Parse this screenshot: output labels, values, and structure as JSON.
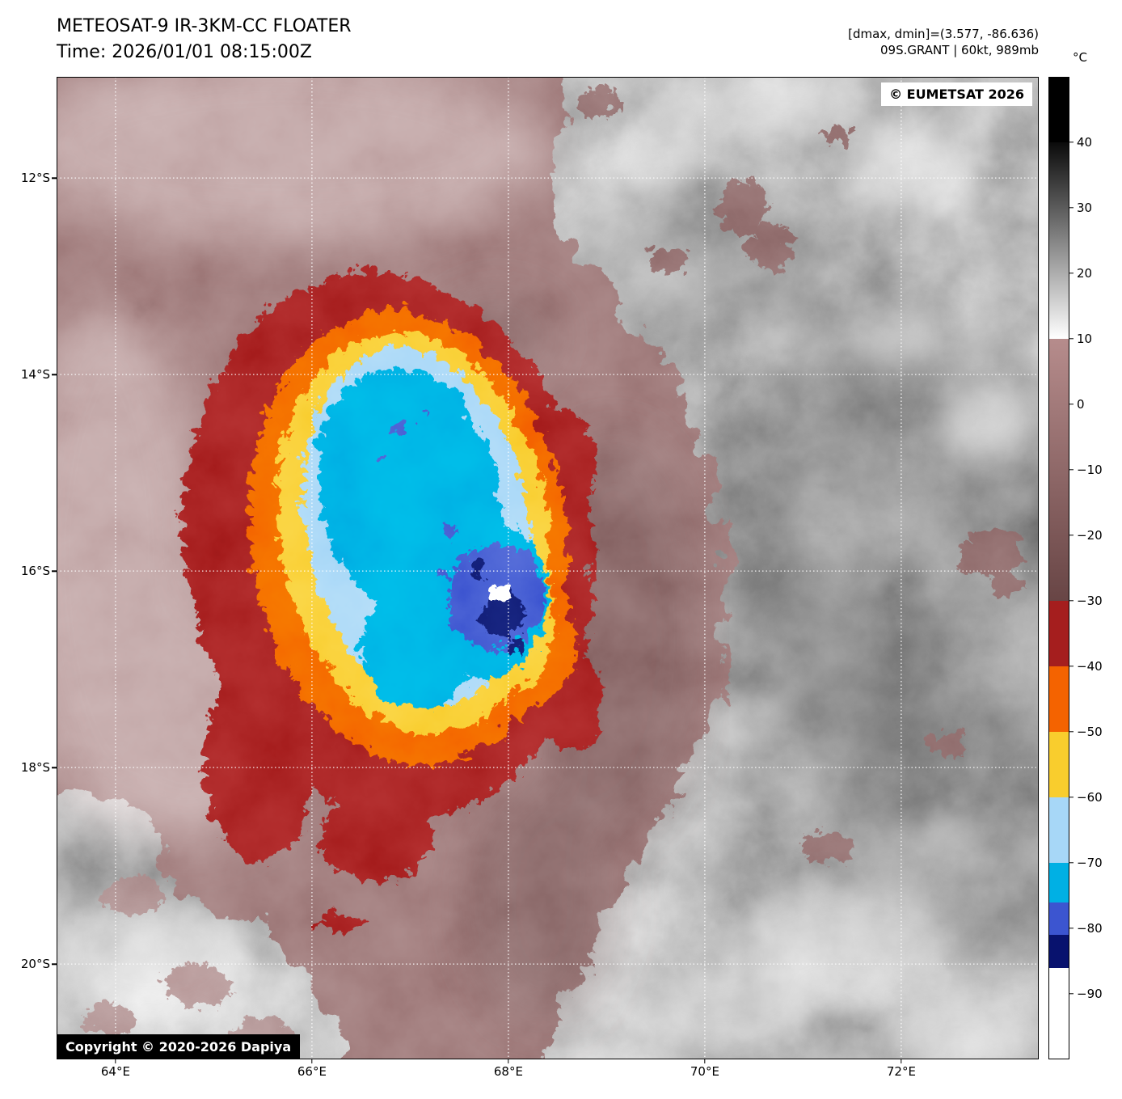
{
  "header": {
    "title": "METEOSAT-9 IR-3KM-CC FLOATER",
    "time": "Time: 2026/01/01 08:15:00Z",
    "dmax_dmin": "[dmax, dmin]=(3.577, -86.636)",
    "storm": "09S.GRANT | 60kt, 989mb"
  },
  "badges": {
    "eumetsat": "© EUMETSAT 2026",
    "copyright": "Copyright © 2020-2026 Dapiya"
  },
  "map": {
    "lon_min": 63.4,
    "lon_max": 73.4,
    "lat_min": -10.97,
    "lat_max": -20.97,
    "x_ticks": [
      {
        "label": "64°E",
        "lon": 64
      },
      {
        "label": "66°E",
        "lon": 66
      },
      {
        "label": "68°E",
        "lon": 68
      },
      {
        "label": "70°E",
        "lon": 70
      },
      {
        "label": "72°E",
        "lon": 72
      }
    ],
    "y_ticks": [
      {
        "label": "12°S",
        "lat": -12
      },
      {
        "label": "14°S",
        "lat": -14
      },
      {
        "label": "16°S",
        "lat": -16
      },
      {
        "label": "18°S",
        "lat": -18
      },
      {
        "label": "20°S",
        "lat": -20
      }
    ]
  },
  "colorbar": {
    "unit": "°C",
    "domain": [
      50,
      -100
    ],
    "ticks": [
      {
        "label": "40",
        "value": 40
      },
      {
        "label": "30",
        "value": 30
      },
      {
        "label": "20",
        "value": 20
      },
      {
        "label": "10",
        "value": 10
      },
      {
        "label": "0",
        "value": 0
      },
      {
        "label": "−10",
        "value": -10
      },
      {
        "label": "−20",
        "value": -20
      },
      {
        "label": "−30",
        "value": -30
      },
      {
        "label": "−40",
        "value": -40
      },
      {
        "label": "−50",
        "value": -50
      },
      {
        "label": "−60",
        "value": -60
      },
      {
        "label": "−70",
        "value": -70
      },
      {
        "label": "−80",
        "value": -80
      },
      {
        "label": "−90",
        "value": -90
      }
    ],
    "segments": [
      {
        "name": "warm-black",
        "color": "#000000",
        "h": 6.67
      },
      {
        "name": "gray-ramp",
        "gradient": [
          "#0a0a0a",
          "#ffffff"
        ],
        "h": 20.0
      },
      {
        "name": "brown-ramp",
        "gradient": [
          "#b68c8c",
          "#684545"
        ],
        "h": 26.67
      },
      {
        "name": "dark-red",
        "color": "#a51e1e",
        "h": 6.67
      },
      {
        "name": "orange",
        "color": "#f46300",
        "h": 6.67
      },
      {
        "name": "yellow",
        "color": "#f9cd2d",
        "h": 6.67
      },
      {
        "name": "light-blue",
        "color": "#a7d7f7",
        "h": 6.66
      },
      {
        "name": "cyan",
        "color": "#00b0e4",
        "h": 4.0
      },
      {
        "name": "royal-blue",
        "color": "#3c55d0",
        "h": 3.33
      },
      {
        "name": "navy",
        "color": "#08126e",
        "h": 3.33
      },
      {
        "name": "cold-white",
        "color": "#ffffff",
        "h": 9.33
      }
    ]
  },
  "palette": {
    "gray_base": "#8a8a8a",
    "shield_brown": "#9b7474",
    "shield_pink": "#e6d4d4",
    "dark_red": "#a51e1e",
    "orange": "#f46300",
    "yellow": "#f9cd2d",
    "light_blue": "#a7d7f7",
    "cyan": "#00b0e4",
    "royal_blue": "#3c55d0",
    "navy": "#08126e",
    "eye_white": "#ffffff"
  }
}
